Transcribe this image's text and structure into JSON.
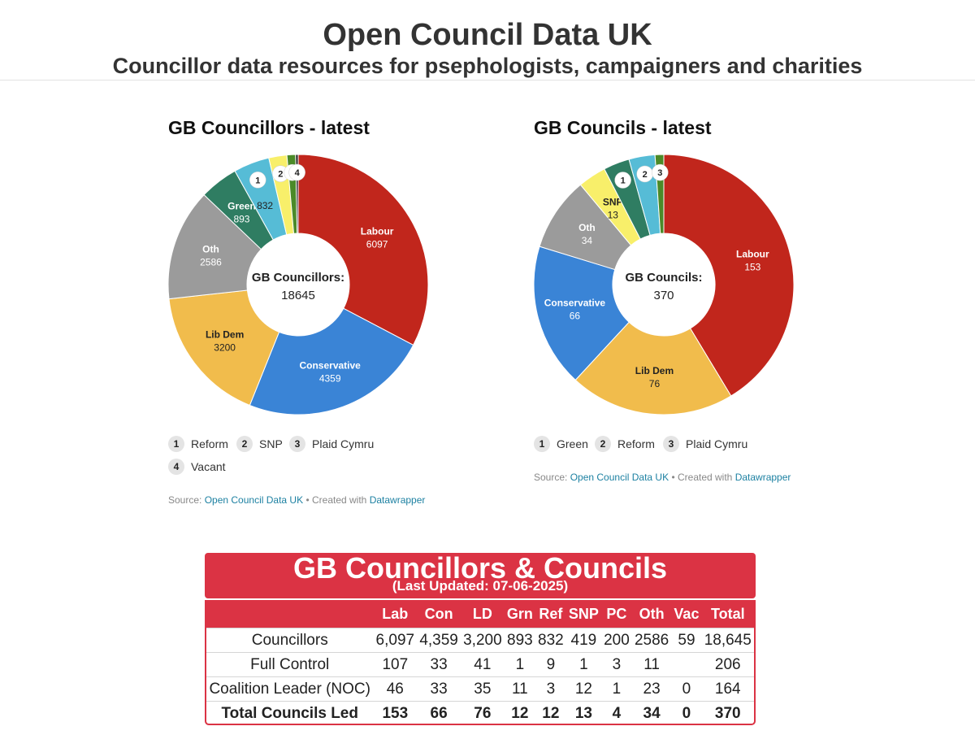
{
  "header": {
    "title": "Open Council Data UK",
    "subtitle": "Councillor data resources for psephologists, campaigners and charities"
  },
  "chart_data": [
    {
      "type": "pie",
      "title": "GB Councillors - latest",
      "center_label": "GB Councillors:",
      "center_value": "18645",
      "slices": [
        {
          "label": "Labour",
          "value": 6097,
          "color": "#c1261c",
          "show": "Labour",
          "text_color": "#ffffff"
        },
        {
          "label": "Conservative",
          "value": 4359,
          "color": "#3a84d6",
          "show": "Conservative",
          "text_color": "#ffffff"
        },
        {
          "label": "Lib Dem",
          "value": 3200,
          "color": "#f1bc4c",
          "show": "Lib Dem",
          "text_color": "#222222"
        },
        {
          "label": "Oth",
          "value": 2586,
          "color": "#9b9b9b",
          "show": "Oth",
          "text_color": "#ffffff"
        },
        {
          "label": "Green",
          "value": 893,
          "color": "#2f7d62",
          "show": "Green",
          "text_color": "#ffffff"
        },
        {
          "label": "Reform",
          "value": 832,
          "color": "#56bcd6",
          "badge": "1",
          "show": "832",
          "text_color": "#222222"
        },
        {
          "label": "SNP",
          "value": 419,
          "color": "#f8ef6a",
          "badge": "2"
        },
        {
          "label": "Plaid Cymru",
          "value": 200,
          "color": "#4b8a28",
          "badge": "3"
        },
        {
          "label": "Vacant",
          "value": 59,
          "color": "#222222",
          "badge": "4"
        }
      ],
      "legend": [
        {
          "num": "1",
          "label": "Reform"
        },
        {
          "num": "2",
          "label": "SNP"
        },
        {
          "num": "3",
          "label": "Plaid Cymru"
        },
        {
          "num": "4",
          "label": "Vacant"
        }
      ],
      "source_prefix": "Source:",
      "source_link": "Open Council Data UK",
      "created_prefix": "• Created with",
      "created_link": "Datawrapper"
    },
    {
      "type": "pie",
      "title": "GB Councils - latest",
      "center_label": "GB Councils:",
      "center_value": "370",
      "slices": [
        {
          "label": "Labour",
          "value": 153,
          "color": "#c1261c",
          "show": "Labour",
          "text_color": "#ffffff"
        },
        {
          "label": "Lib Dem",
          "value": 76,
          "color": "#f1bc4c",
          "show": "Lib Dem",
          "text_color": "#222222"
        },
        {
          "label": "Conservative",
          "value": 66,
          "color": "#3a84d6",
          "show": "Conservative",
          "text_color": "#ffffff"
        },
        {
          "label": "Oth",
          "value": 34,
          "color": "#9b9b9b",
          "show": "Oth",
          "text_color": "#ffffff"
        },
        {
          "label": "SNP",
          "value": 13,
          "color": "#f8ef6a",
          "show": "SNP",
          "text_color": "#222222"
        },
        {
          "label": "Green",
          "value": 12,
          "color": "#2f7d62",
          "badge": "1"
        },
        {
          "label": "Reform",
          "value": 12,
          "color": "#56bcd6",
          "badge": "2"
        },
        {
          "label": "Plaid Cymru",
          "value": 4,
          "color": "#4b8a28",
          "badge": "3"
        }
      ],
      "legend": [
        {
          "num": "1",
          "label": "Green"
        },
        {
          "num": "2",
          "label": "Reform"
        },
        {
          "num": "3",
          "label": "Plaid Cymru"
        }
      ],
      "source_prefix": "Source:",
      "source_link": "Open Council Data UK",
      "created_prefix": "• Created with",
      "created_link": "Datawrapper"
    },
    {
      "type": "table",
      "title": "GB Councillors & Councils",
      "subtitle": "(Last Updated: 07-06-2025)",
      "columns": [
        "",
        "Lab",
        "Con",
        "LD",
        "Grn",
        "Ref",
        "SNP",
        "PC",
        "Oth",
        "Vac",
        "Total"
      ],
      "rows": [
        [
          "Councillors",
          "6,097",
          "4,359",
          "3,200",
          "893",
          "832",
          "419",
          "200",
          "2586",
          "59",
          "18,645"
        ],
        [
          "Full Control",
          "107",
          "33",
          "41",
          "1",
          "9",
          "1",
          "3",
          "11",
          "",
          "206"
        ],
        [
          "Coalition Leader (NOC)",
          "46",
          "33",
          "35",
          "11",
          "3",
          "12",
          "1",
          "23",
          "0",
          "164"
        ],
        [
          "Total Councils Led",
          "153",
          "66",
          "76",
          "12",
          "12",
          "13",
          "4",
          "34",
          "0",
          "370"
        ]
      ]
    }
  ]
}
